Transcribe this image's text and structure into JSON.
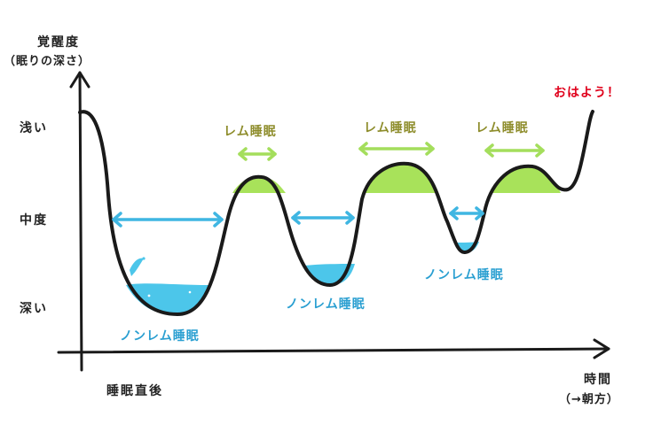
{
  "y_axis": {
    "title_line1": "覚醒度",
    "title_line2": "（眠りの深さ）",
    "tick_shallow": "浅い",
    "tick_middle": "中度",
    "tick_deep": "深い"
  },
  "x_axis": {
    "title_line1": "時間",
    "title_line2": "（→朝方）",
    "start_label": "睡眠直後"
  },
  "stages": {
    "rem_label": "レム睡眠",
    "nonrem_label": "ノンレム睡眠",
    "wake_label": "おはよう！"
  },
  "colors": {
    "curve": "#1a1a1a",
    "rem_fill": "#a8e25a",
    "rem_arrow": "#a4de5c",
    "nonrem_fill": "#4cc6ea",
    "nonrem_arrow": "#3fb6e2",
    "rem_text": "#8d8c2a",
    "nonrem_text": "#2a9fd1",
    "wake_text": "#e0001b"
  }
}
